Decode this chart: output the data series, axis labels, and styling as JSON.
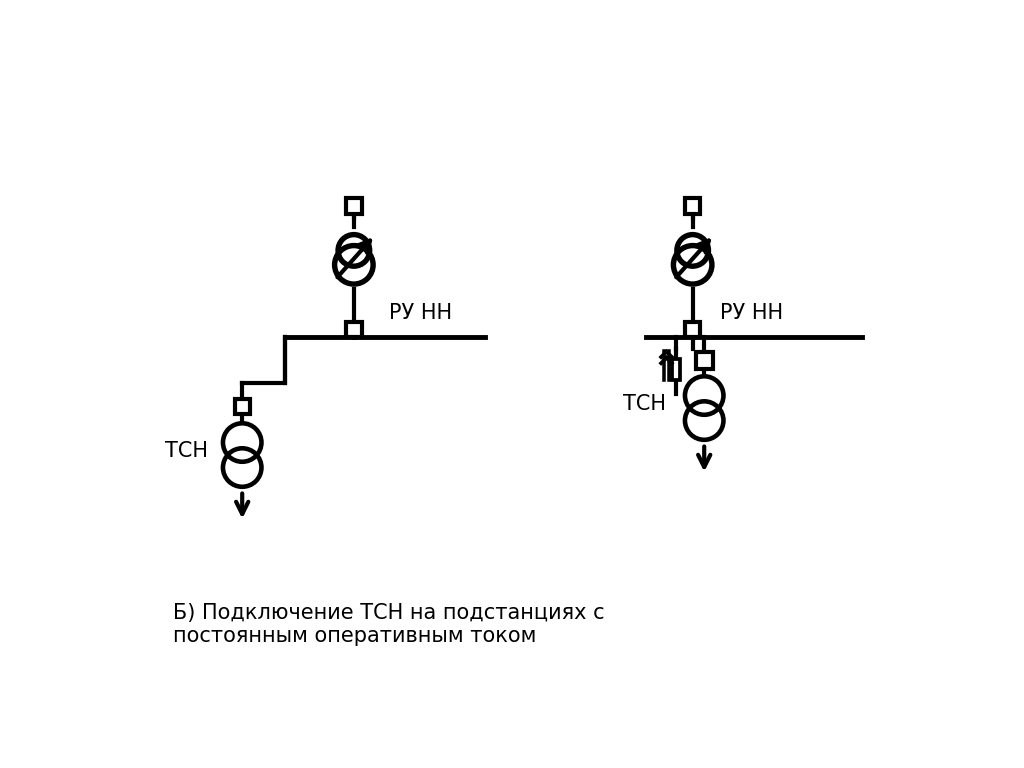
{
  "bg_color": "#ffffff",
  "line_color": "#000000",
  "lw": 3.0,
  "lw_bus": 3.5,
  "label_tsn1": "ТСН",
  "label_tsn2": "ТСН",
  "label_ru_nn1": "РУ НН",
  "label_ru_nn2": "РУ НН",
  "caption": "Б) Подключение ТСН на подстанциях с\nпостоянным оперативным током",
  "caption_fontsize": 15,
  "label_fontsize": 15,
  "sq_size": 0.2,
  "motor_r": 0.25,
  "trans_r": 0.25
}
